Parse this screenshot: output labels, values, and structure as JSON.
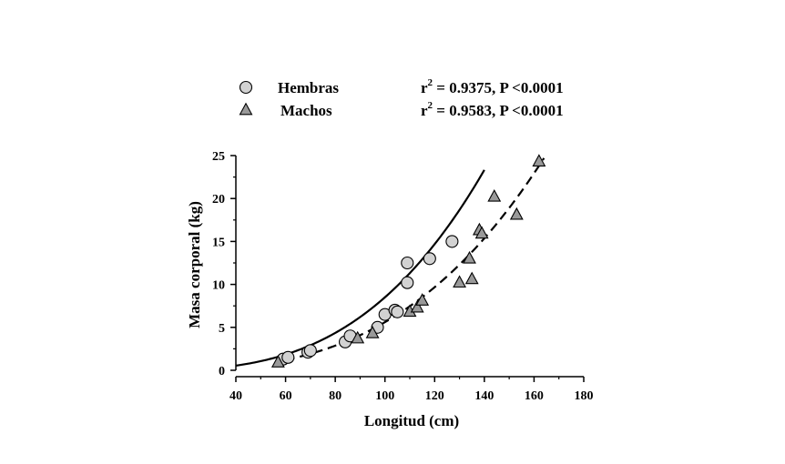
{
  "chart_data": {
    "type": "scatter",
    "xlabel": "Longitud (cm)",
    "ylabel": "Masa corporal (kg)",
    "xlim": [
      40,
      180
    ],
    "ylim": [
      0,
      25
    ],
    "xticks": [
      40,
      60,
      80,
      100,
      120,
      140,
      160,
      180
    ],
    "yticks": [
      0,
      5,
      10,
      15,
      20,
      25
    ],
    "grid": false,
    "legend_position": "top",
    "series": [
      {
        "name": "Hembras",
        "marker": "circle",
        "stats": {
          "r2_label": "r",
          "r2_sup": "2",
          "text": " = 0.9375, P <0.0001"
        },
        "fit_line": "solid",
        "fit": {
          "a": 8.5e-06,
          "b": 3.0,
          "x_range": [
            40,
            140
          ]
        },
        "points": [
          {
            "x": 59,
            "y": 1.3
          },
          {
            "x": 61,
            "y": 1.5
          },
          {
            "x": 69,
            "y": 2.1
          },
          {
            "x": 70,
            "y": 2.3
          },
          {
            "x": 84,
            "y": 3.3
          },
          {
            "x": 86,
            "y": 4.0
          },
          {
            "x": 97,
            "y": 5.0
          },
          {
            "x": 100,
            "y": 6.5
          },
          {
            "x": 104,
            "y": 7.0
          },
          {
            "x": 105,
            "y": 6.8
          },
          {
            "x": 109,
            "y": 12.5
          },
          {
            "x": 109,
            "y": 10.2
          },
          {
            "x": 118,
            "y": 13.0
          },
          {
            "x": 127,
            "y": 15.0
          }
        ]
      },
      {
        "name": "Machos",
        "marker": "triangle",
        "stats": {
          "r2_label": "r",
          "r2_sup": "2",
          "text": " = 0.9583, P <0.0001"
        },
        "fit_line": "dashed",
        "fit": {
          "a": 5.6e-06,
          "b": 3.0,
          "x_range": [
            60,
            164
          ]
        },
        "points": [
          {
            "x": 57,
            "y": 0.9
          },
          {
            "x": 89,
            "y": 3.7
          },
          {
            "x": 95,
            "y": 4.3
          },
          {
            "x": 110,
            "y": 6.8
          },
          {
            "x": 113,
            "y": 7.3
          },
          {
            "x": 115,
            "y": 8.1
          },
          {
            "x": 130,
            "y": 10.2
          },
          {
            "x": 134,
            "y": 13.0
          },
          {
            "x": 135,
            "y": 10.6
          },
          {
            "x": 138,
            "y": 16.3
          },
          {
            "x": 139,
            "y": 15.9
          },
          {
            "x": 144,
            "y": 20.2
          },
          {
            "x": 153,
            "y": 18.1
          },
          {
            "x": 162,
            "y": 24.3
          }
        ]
      }
    ]
  },
  "colors": {
    "circle_fill": "#d2d2d2",
    "triangle_fill": "#999999",
    "ink": "#000000"
  }
}
